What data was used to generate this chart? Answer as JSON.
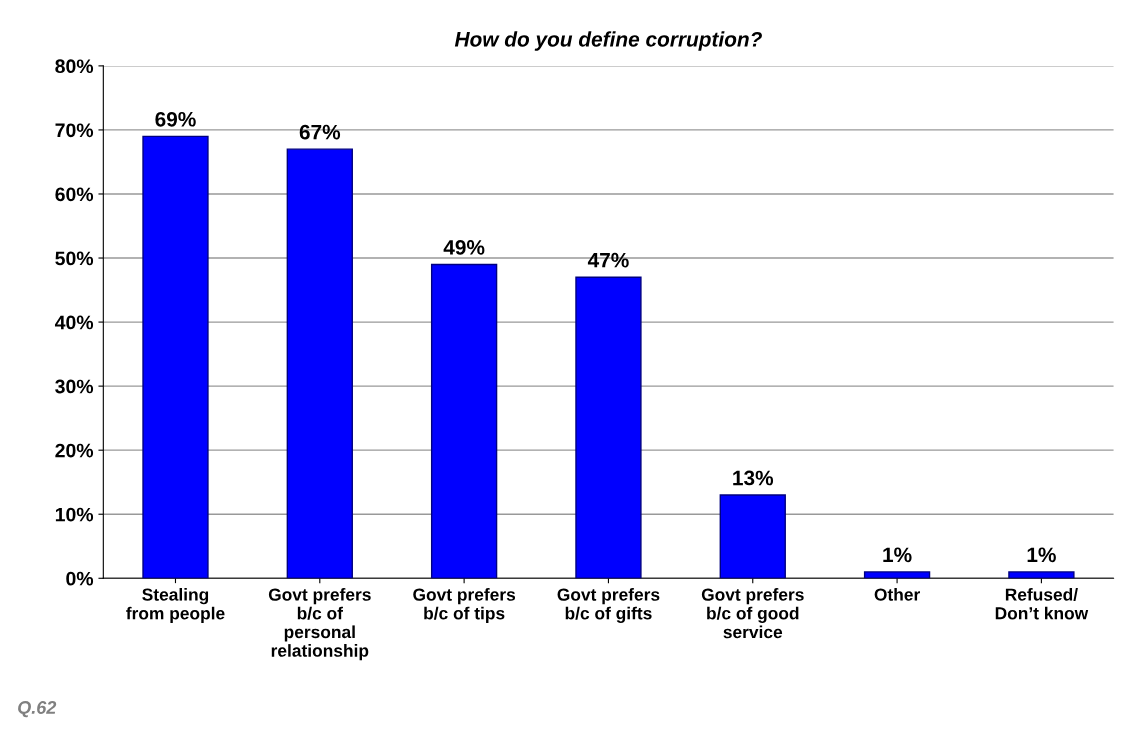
{
  "chart_data": {
    "type": "bar",
    "title": "How do you define corruption?",
    "categories": [
      "Stealing\nfrom people",
      "Govt prefers\nb/c of\npersonal\nrelationship",
      "Govt prefers\nb/c of tips",
      "Govt prefers\nb/c of gifts",
      "Govt prefers\nb/c of good\nservice",
      "Other",
      "Refused/\nDon’t know"
    ],
    "values": [
      69,
      67,
      49,
      47,
      13,
      1,
      1
    ],
    "value_labels": [
      "69%",
      "67%",
      "49%",
      "47%",
      "13%",
      "1%",
      "1%"
    ],
    "color": "#0000ff",
    "ylim": [
      0,
      80
    ],
    "yticks": [
      {
        "value": 0,
        "label": "0%"
      },
      {
        "value": 10,
        "label": "10%"
      },
      {
        "value": 20,
        "label": "20%"
      },
      {
        "value": 30,
        "label": "30%"
      },
      {
        "value": 40,
        "label": "40%"
      },
      {
        "value": 50,
        "label": "50%"
      },
      {
        "value": 60,
        "label": "60%"
      },
      {
        "value": 70,
        "label": "70%"
      },
      {
        "value": 80,
        "label": "80%"
      }
    ],
    "grid": "y",
    "annotations": [
      "Q.62"
    ]
  }
}
